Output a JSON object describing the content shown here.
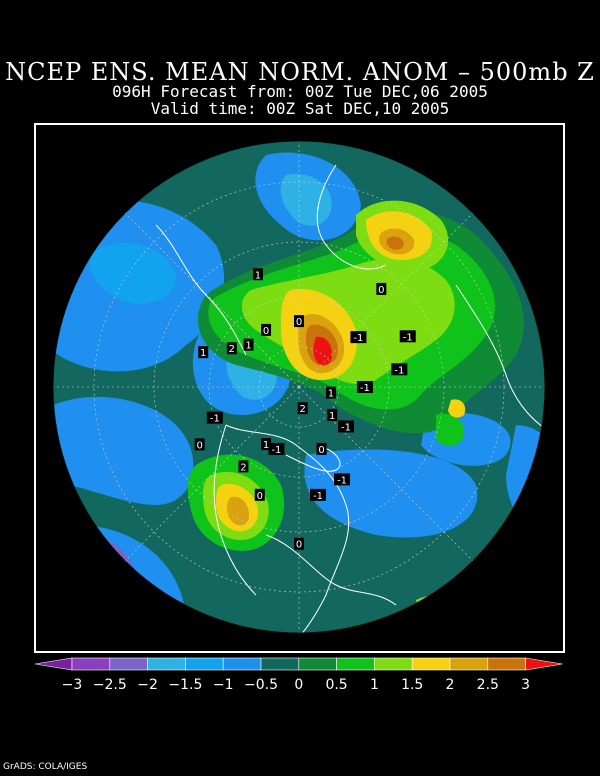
{
  "title": "NCEP ENS. MEAN NORM. ANOM – 500mb Z",
  "forecast_line": "096H Forecast from: 00Z Tue DEC,06 2005",
  "valid_line": "Valid time: 00Z Sat DEC,10 2005",
  "credit": "GrADS: COLA/IGES",
  "colorbar": {
    "ticks": [
      "−3",
      "−2.5",
      "−2",
      "−1.5",
      "−1",
      "−0.5",
      "0",
      "0.5",
      "1",
      "1.5",
      "2",
      "2.5",
      "3"
    ],
    "colors": [
      "#7a1fa2",
      "#8a3fbf",
      "#7a64c8",
      "#2eb2e6",
      "#12a3ee",
      "#1f8ff0",
      "#12685f",
      "#0f8a35",
      "#10c31a",
      "#7edc12",
      "#f5d211",
      "#d9a20e",
      "#c8740a",
      "#ee1111"
    ]
  },
  "contour_labels": [
    {
      "text": "0",
      "lon": -140,
      "lat": 40
    },
    {
      "text": "-1",
      "lon": -150,
      "lat": 50
    },
    {
      "text": "-1",
      "lon": -100,
      "lat": 60
    },
    {
      "text": "-1",
      "lon": -70,
      "lat": 42
    },
    {
      "text": "-1",
      "lon": -55,
      "lat": 45
    },
    {
      "text": "-1",
      "lon": 20,
      "lat": 45
    },
    {
      "text": "-1",
      "lon": 50,
      "lat": 55
    },
    {
      "text": "-1",
      "lon": 35,
      "lat": 38
    },
    {
      "text": "-1",
      "lon": 10,
      "lat": 60
    },
    {
      "text": "-1",
      "lon": -30,
      "lat": 62
    },
    {
      "text": "1",
      "lon": -30,
      "lat": 70
    },
    {
      "text": "1",
      "lon": -110,
      "lat": 60
    },
    {
      "text": "1",
      "lon": 150,
      "lat": 60
    },
    {
      "text": "1",
      "lon": 170,
      "lat": 45
    },
    {
      "text": "1",
      "lon": 120,
      "lat": 38
    },
    {
      "text": "1",
      "lon": 0,
      "lat": 75
    },
    {
      "text": "2",
      "lon": -115,
      "lat": 47
    },
    {
      "text": "2",
      "lon": 160,
      "lat": 55
    },
    {
      "text": "2",
      "lon": -70,
      "lat": 80
    },
    {
      "text": "0",
      "lon": -100,
      "lat": 40
    },
    {
      "text": "0",
      "lon": -80,
      "lat": 25
    },
    {
      "text": "0",
      "lon": 60,
      "lat": 35
    },
    {
      "text": "0",
      "lon": 130,
      "lat": 60
    },
    {
      "text": "0",
      "lon": 100,
      "lat": 60
    },
    {
      "text": "0",
      "lon": -60,
      "lat": 60
    }
  ]
}
